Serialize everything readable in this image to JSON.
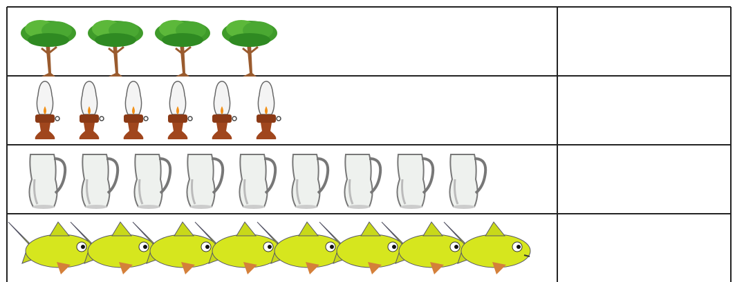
{
  "table": {
    "rows": [
      {
        "icon_count": 4
      },
      {
        "icon_count": 6
      },
      {
        "icon_count": 9
      },
      {
        "icon_count": 8
      }
    ]
  }
}
